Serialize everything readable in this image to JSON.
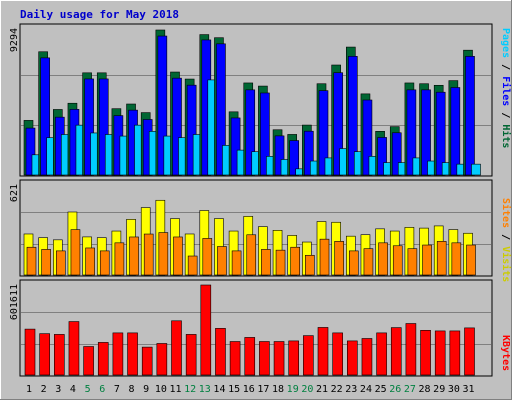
{
  "chart_data": {
    "type": "bar",
    "title": "Daily usage for May 2018",
    "categories": [
      "1",
      "2",
      "3",
      "4",
      "5",
      "6",
      "7",
      "8",
      "9",
      "10",
      "11",
      "12",
      "13",
      "14",
      "15",
      "16",
      "17",
      "18",
      "19",
      "20",
      "21",
      "22",
      "23",
      "24",
      "25",
      "26",
      "27",
      "28",
      "29",
      "30",
      "31"
    ],
    "weekend_days": [
      "5",
      "6",
      "12",
      "13",
      "19",
      "20",
      "26",
      "27"
    ],
    "panels": [
      {
        "id": "hits_files_pages",
        "ymax_label": "9294",
        "ylim": [
          0,
          9294
        ],
        "legend": [
          "Pages",
          "Files",
          "Hits"
        ],
        "series": [
          {
            "name": "Hits",
            "color": "#006633",
            "values": [
              3500,
              7900,
              4200,
              4600,
              6550,
              6550,
              4250,
              4550,
              4000,
              9294,
              6600,
              6150,
              9000,
              8800,
              4050,
              5900,
              5700,
              2900,
              2600,
              3200,
              5850,
              7050,
              8200,
              5200,
              2800,
              3100,
              5900,
              5850,
              5750,
              6050,
              8000
            ]
          },
          {
            "name": "Files",
            "color": "#0000ff",
            "values": [
              3200,
              7700,
              3900,
              4400,
              6350,
              6350,
              4000,
              4350,
              3750,
              9100,
              6400,
              5950,
              8850,
              8600,
              3850,
              5650,
              5450,
              2700,
              2400,
              3000,
              5600,
              6750,
              7800,
              5000,
              2600,
              2900,
              5650,
              5650,
              5500,
              5800,
              7800
            ]
          },
          {
            "name": "Pages",
            "color": "#00ccff",
            "values": [
              2000,
              3100,
              3300,
              3900,
              3400,
              3300,
              3200,
              3900,
              3500,
              3200,
              3100,
              3300,
              6800,
              2600,
              2300,
              2200,
              1900,
              1700,
              1100,
              1600,
              1800,
              2400,
              2200,
              1900,
              1500,
              1500,
              1800,
              1600,
              1500,
              1400,
              1400
            ]
          }
        ]
      },
      {
        "id": "visits_sites",
        "ymax_label": "621",
        "ylim": [
          0,
          621
        ],
        "legend": [
          "Sites",
          "Visits"
        ],
        "series": [
          {
            "name": "Visits",
            "color": "#ffff00",
            "values": [
              280,
              255,
              240,
              430,
              260,
              255,
              300,
              380,
              460,
              510,
              385,
              280,
              440,
              385,
              300,
              400,
              330,
              305,
              270,
              225,
              365,
              360,
              265,
              275,
              315,
              300,
              325,
              320,
              335,
              310,
              285
            ]
          },
          {
            "name": "Sites",
            "color": "#ff8000",
            "values": [
              210,
              195,
              185,
              330,
              205,
              185,
              240,
              280,
              300,
              310,
              280,
              150,
              270,
              215,
              185,
              295,
              195,
              190,
              210,
              155,
              265,
              250,
              185,
              200,
              240,
              220,
              200,
              225,
              250,
              240,
              225
            ]
          }
        ]
      },
      {
        "id": "kbytes",
        "ymax_label": "601611",
        "ylim": [
          0,
          601611
        ],
        "legend": [
          "KBytes"
        ],
        "series": [
          {
            "name": "KBytes",
            "color": "#ff0000",
            "values": [
              310000,
              280000,
              275000,
              360000,
              195000,
              222000,
              285000,
              285000,
              191000,
              215000,
              365000,
              275000,
              601611,
              315000,
              228000,
              255000,
              228000,
              228000,
              232000,
              267000,
              321000,
              285000,
              232000,
              248000,
              285000,
              320000,
              347000,
              302000,
              298000,
              298000,
              318000
            ]
          }
        ]
      }
    ]
  }
}
